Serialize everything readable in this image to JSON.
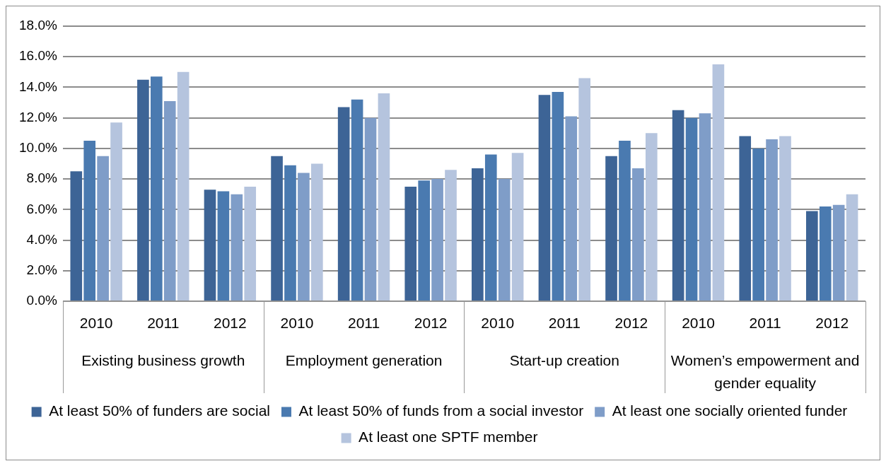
{
  "chart_data": {
    "type": "bar",
    "categories": [
      "2010",
      "2011",
      "2012",
      "2010",
      "2011",
      "2012",
      "2010",
      "2011",
      "2012",
      "2010",
      "2011",
      "2012"
    ],
    "annotations": [
      "Existing business growth",
      "Employment generation",
      "Start-up creation",
      "Women’s empowerment and gender equality"
    ],
    "series": [
      {
        "name": "At least 50% of funders are social",
        "color": "#3d6496",
        "values": [
          8.5,
          14.5,
          7.3,
          9.5,
          12.7,
          7.5,
          8.7,
          13.5,
          9.5,
          12.5,
          10.8,
          5.9
        ]
      },
      {
        "name": "At least 50% of funds from a social investor",
        "color": "#4a7ab0",
        "values": [
          10.5,
          14.7,
          7.2,
          8.9,
          13.2,
          7.9,
          9.6,
          13.7,
          10.5,
          12.0,
          10.0,
          6.2
        ]
      },
      {
        "name": "At least one socially oriented funder",
        "color": "#7f9dc8",
        "values": [
          9.5,
          13.1,
          7.0,
          8.4,
          12.0,
          8.0,
          8.0,
          12.1,
          8.7,
          12.3,
          10.6,
          6.3
        ]
      },
      {
        "name": "At least one SPTF member",
        "color": "#b5c4de",
        "values": [
          11.7,
          15.0,
          7.5,
          9.0,
          13.6,
          8.6,
          9.7,
          14.6,
          11.0,
          15.5,
          10.8,
          7.0
        ]
      }
    ],
    "ylim": [
      0,
      18
    ],
    "yticks": [
      {
        "value": 0,
        "label": "0.0%"
      },
      {
        "value": 2,
        "label": "2.0%"
      },
      {
        "value": 4,
        "label": "4.0%"
      },
      {
        "value": 6,
        "label": "6.0%"
      },
      {
        "value": 8,
        "label": "8.0%"
      },
      {
        "value": 10,
        "label": "10.0%"
      },
      {
        "value": 12,
        "label": "12.0%"
      },
      {
        "value": 14,
        "label": "14.0%"
      },
      {
        "value": 16,
        "label": "16.0%"
      },
      {
        "value": 18,
        "label": "18.0%"
      }
    ],
    "grid": "y",
    "legend": "bottom"
  }
}
